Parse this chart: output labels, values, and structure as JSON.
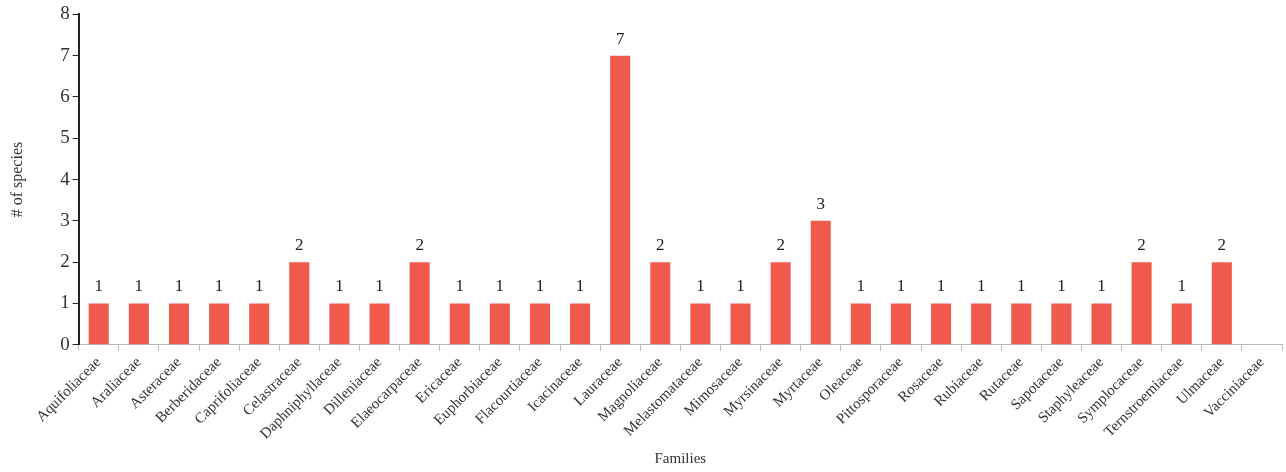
{
  "chart_data": {
    "type": "bar",
    "xlabel": "Families",
    "ylabel": "# of species",
    "categories": [
      "Aquifoliaceae",
      "Araliaceae",
      "Asteraceae",
      "Berberidaceae",
      "Caprifoliaceae",
      "Celastraceae",
      "Daphniphyllaceae",
      "Dilleniaceae",
      "Elaeocarpaceae",
      "Ericaceae",
      "Euphorbiaceae",
      "Flacourtiaceae",
      "Icacinaceae",
      "Lauraceae",
      "Magnoliaceae",
      "Melastomataceae",
      "Mimosaceae",
      "Myrsinaceae",
      "Myrtaceae",
      "Oleaceae",
      "Pittosporaceae",
      "Rosaceae",
      "Rubiaceae",
      "Rutaceae",
      "Sapotaceae",
      "Staphyleaceae",
      "Symplocaceae",
      "Ternstroemiaceae",
      "Ulmaceae",
      "Vacciniaceae"
    ],
    "values": [
      1,
      1,
      1,
      1,
      1,
      2,
      1,
      1,
      2,
      1,
      1,
      1,
      1,
      7,
      2,
      1,
      1,
      2,
      3,
      1,
      1,
      1,
      1,
      1,
      1,
      1,
      2,
      1,
      2,
      null
    ],
    "color": "#f05a4c",
    "ylim": [
      0,
      8
    ],
    "yticks": [
      0,
      1,
      2,
      3,
      4,
      5,
      6,
      7,
      8
    ],
    "data_labels": true,
    "legend": false
  }
}
